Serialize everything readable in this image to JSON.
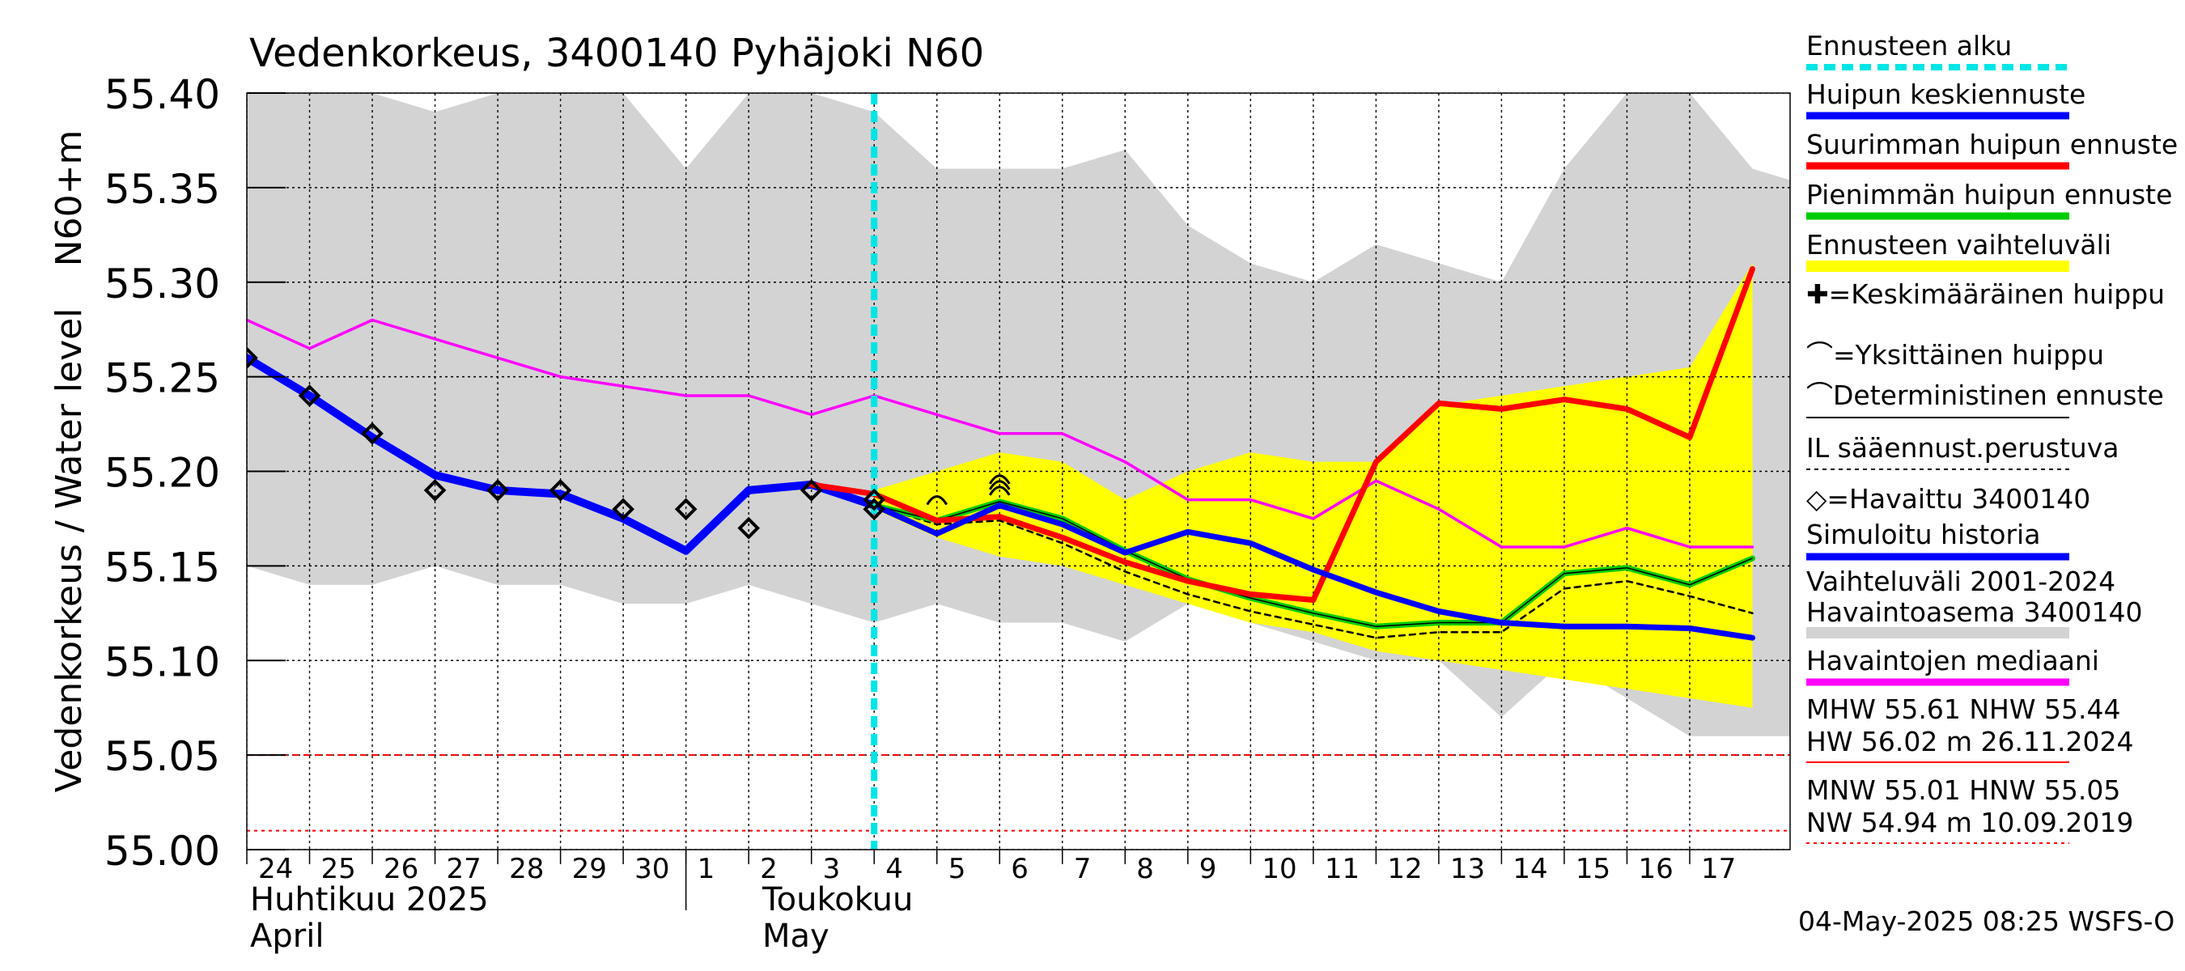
{
  "chart_data": {
    "type": "line",
    "title": "Vedenkorkeus, 3400140 Pyhäjoki N60",
    "ylabel": "Vedenkorkeus / Water level",
    "ylabel_unit": "N60+m",
    "ylim": [
      55.0,
      55.4
    ],
    "yticks": [
      "55.40",
      "55.35",
      "55.30",
      "55.25",
      "55.20",
      "55.15",
      "55.10",
      "55.05",
      "55.00"
    ],
    "x_day_labels": [
      "24",
      "25",
      "26",
      "27",
      "28",
      "29",
      "30",
      "1",
      "2",
      "3",
      "4",
      "5",
      "6",
      "7",
      "8",
      "9",
      "10",
      "11",
      "12",
      "13",
      "14",
      "15",
      "16",
      "17"
    ],
    "x_month_labels": [
      {
        "fi": "Huhtikuu  2025",
        "en": "April"
      },
      {
        "fi": "Toukokuu",
        "en": "May"
      }
    ],
    "forecast_start_index": 10,
    "grid": true,
    "legend_placement": "right",
    "footer": "04-May-2025 08:25 WSFS-O",
    "colors": {
      "variation_band": "#d3d3d3",
      "forecast_band": "#ffff00",
      "median": "#ff00ff",
      "simulated_history": "#0000ff",
      "mean_peak_forecast": "#0000ff",
      "max_peak_forecast": "#ff0000",
      "min_peak_forecast": "#00cc00",
      "forecast_start": "#00e5e5",
      "reference_lines": "#ff0000"
    },
    "variation_band": {
      "upper": [
        55.4,
        55.4,
        55.4,
        55.39,
        55.4,
        55.4,
        55.4,
        55.36,
        55.4,
        55.4,
        55.39,
        55.36,
        55.36,
        55.36,
        55.37,
        55.33,
        55.31,
        55.3,
        55.32,
        55.31,
        55.3,
        55.36,
        55.4,
        55.4,
        55.36,
        55.35
      ],
      "lower": [
        55.15,
        55.14,
        55.14,
        55.15,
        55.14,
        55.14,
        55.13,
        55.13,
        55.14,
        55.13,
        55.12,
        55.13,
        55.12,
        55.12,
        55.11,
        55.13,
        55.12,
        55.11,
        55.1,
        55.1,
        55.07,
        55.1,
        55.08,
        55.06,
        55.06,
        55.06
      ]
    },
    "forecast_band": {
      "upper": [
        55.19,
        55.2,
        55.21,
        55.205,
        55.185,
        55.2,
        55.21,
        55.205,
        55.205,
        55.235,
        55.24,
        55.245,
        55.25,
        55.255,
        55.31
      ],
      "lower": [
        55.18,
        55.165,
        55.155,
        55.15,
        55.14,
        55.13,
        55.12,
        55.115,
        55.105,
        55.1,
        55.095,
        55.09,
        55.085,
        55.08,
        55.075
      ]
    },
    "series": [
      {
        "name": "Havaintojen mediaani",
        "x": [
          0,
          1,
          2,
          3,
          4,
          5,
          6,
          7,
          8,
          9,
          10,
          11,
          12,
          13,
          14,
          15,
          16,
          17,
          18,
          19,
          20,
          21,
          22,
          23,
          24
        ],
        "values": [
          55.28,
          55.265,
          55.28,
          55.27,
          55.26,
          55.25,
          55.245,
          55.24,
          55.24,
          55.23,
          55.24,
          55.23,
          55.22,
          55.22,
          55.205,
          55.185,
          55.185,
          55.175,
          55.195,
          55.18,
          55.16,
          55.16,
          55.17,
          55.16,
          55.16
        ]
      },
      {
        "name": "Simuloitu historia",
        "x": [
          0,
          1,
          2,
          3,
          4,
          5,
          6,
          7,
          8,
          9,
          10
        ],
        "values": [
          55.26,
          55.24,
          55.218,
          55.198,
          55.19,
          55.188,
          55.175,
          55.158,
          55.19,
          55.193,
          55.182
        ]
      },
      {
        "name": "Huipun keskiennuste",
        "x": [
          10,
          11,
          12,
          13,
          14,
          15,
          16,
          17,
          18,
          19,
          20,
          21,
          22,
          23,
          24
        ],
        "values": [
          55.182,
          55.167,
          55.182,
          55.172,
          55.157,
          55.168,
          55.162,
          55.148,
          55.136,
          55.126,
          55.12,
          55.118,
          55.118,
          55.117,
          55.112
        ]
      },
      {
        "name": "Suurimman huipun ennuste",
        "x": [
          9,
          10,
          11,
          12,
          13,
          14,
          15,
          16,
          17,
          18,
          19,
          20,
          21,
          22,
          23,
          24
        ],
        "values": [
          55.193,
          55.188,
          55.174,
          55.176,
          55.165,
          55.152,
          55.142,
          55.135,
          55.132,
          55.205,
          55.236,
          55.233,
          55.238,
          55.233,
          55.218,
          55.307
        ]
      },
      {
        "name": "Pienimmän huipun ennuste",
        "x": [
          10,
          11,
          12,
          13,
          14,
          15,
          16,
          17,
          18,
          19,
          20,
          21,
          22,
          23,
          24
        ],
        "values": [
          55.182,
          55.174,
          55.184,
          55.175,
          55.158,
          55.143,
          55.133,
          55.125,
          55.118,
          55.12,
          55.12,
          55.146,
          55.149,
          55.14,
          55.154
        ]
      },
      {
        "name": "IL sääennust.perustuva",
        "x": [
          10,
          11,
          12,
          13,
          14,
          15,
          16,
          17,
          18,
          19,
          20,
          21,
          22,
          23,
          24
        ],
        "values": [
          55.182,
          55.172,
          55.174,
          55.162,
          55.147,
          55.135,
          55.126,
          55.119,
          55.112,
          55.115,
          55.115,
          55.138,
          55.142,
          55.134,
          55.125
        ]
      }
    ],
    "observed": {
      "name": "Havaittu 3400140",
      "x": [
        0,
        1,
        2,
        3,
        4,
        5,
        6,
        7,
        8,
        9,
        10,
        10
      ],
      "values": [
        55.26,
        55.24,
        55.22,
        55.19,
        55.19,
        55.19,
        55.18,
        55.18,
        55.17,
        55.19,
        55.185,
        55.18
      ]
    },
    "single_peaks": {
      "x": [
        11,
        12,
        12,
        12
      ],
      "values": [
        55.185,
        55.19,
        55.193,
        55.196
      ]
    },
    "reference_lines": {
      "dashed": 55.05,
      "dotted": 55.01
    },
    "legend": [
      {
        "label": "Ennusteen alku",
        "style": "dash",
        "color": "#00e5e5"
      },
      {
        "label": "Huipun keskiennuste",
        "style": "line",
        "color": "#0000ff"
      },
      {
        "label": "Suurimman huipun ennuste",
        "style": "line",
        "color": "#ff0000"
      },
      {
        "label": "Pienimmän huipun ennuste",
        "style": "line",
        "color": "#00cc00"
      },
      {
        "label": "Ennusteen vaihteluväli",
        "style": "line",
        "color": "#ffff00"
      },
      {
        "label": "✚=Keskimääräinen huippu",
        "style": "none",
        "color": "#000000"
      },
      {
        "label": "⌒=Yksittäinen huippu",
        "style": "none",
        "color": "#000000"
      },
      {
        "label": "⌒Deterministinen ennuste",
        "style": "thin",
        "color": "#000000"
      },
      {
        "label": "IL sääennust.perustuva",
        "style": "dotted",
        "color": "#000000"
      },
      {
        "label": "◇=Havaittu 3400140",
        "style": "none",
        "color": "#000000"
      },
      {
        "label": "Simuloitu historia",
        "style": "line",
        "color": "#0000ff"
      },
      {
        "label": "Vaihteluväli 2001-2024",
        "style": "none",
        "color": "#000000"
      },
      {
        "label": " Havaintoasema 3400140",
        "style": "line",
        "color": "#d3d3d3"
      },
      {
        "label": "Havaintojen mediaani",
        "style": "line",
        "color": "#ff00ff"
      },
      {
        "label": "MHW  55.61 NHW  55.44",
        "style": "none",
        "color": "#000000"
      },
      {
        "label": "HW  56.02 m 26.11.2024",
        "style": "thinred",
        "color": "#ff0000"
      },
      {
        "label": "MNW  55.01 HNW  55.05",
        "style": "none",
        "color": "#000000"
      },
      {
        "label": "NW  54.94 m 10.09.2019",
        "style": "dottedred",
        "color": "#ff0000"
      }
    ]
  }
}
